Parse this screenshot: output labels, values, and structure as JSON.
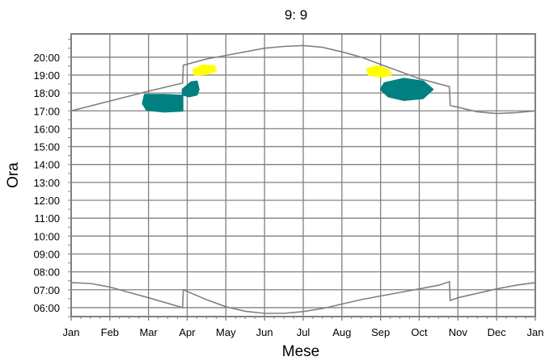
{
  "chart_data": {
    "type": "line",
    "title": "9: 9",
    "xlabel": "Mese",
    "ylabel": "Ora",
    "x_ticks": [
      "Jan",
      "Feb",
      "Mar",
      "Apr",
      "May",
      "Jun",
      "Jul",
      "Aug",
      "Sep",
      "Oct",
      "Nov",
      "Dec",
      "Jan"
    ],
    "y_ticks": [
      "06:00",
      "07:00",
      "08:00",
      "09:00",
      "10:00",
      "11:00",
      "12:00",
      "13:00",
      "14:00",
      "15:00",
      "16:00",
      "17:00",
      "18:00",
      "19:00",
      "20:00"
    ],
    "xlim": [
      0,
      12
    ],
    "ylim": [
      5.5,
      21.3
    ],
    "grid": true,
    "series": [
      {
        "role": "sunset",
        "color": "#808080",
        "points": [
          [
            0,
            17.0
          ],
          [
            1,
            17.55
          ],
          [
            2,
            18.1
          ],
          [
            2.88,
            18.55
          ],
          [
            2.9,
            19.55
          ],
          [
            3.5,
            19.9
          ],
          [
            4,
            20.1
          ],
          [
            5,
            20.5
          ],
          [
            5.5,
            20.6
          ],
          [
            6,
            20.65
          ],
          [
            6.5,
            20.55
          ],
          [
            7,
            20.3
          ],
          [
            7.5,
            20.0
          ],
          [
            8,
            19.6
          ],
          [
            8.5,
            19.2
          ],
          [
            9,
            18.8
          ],
          [
            9.78,
            18.35
          ],
          [
            9.8,
            17.3
          ],
          [
            10,
            17.2
          ],
          [
            10.5,
            16.95
          ],
          [
            11,
            16.85
          ],
          [
            11.5,
            16.9
          ],
          [
            12,
            17.0
          ]
        ]
      },
      {
        "role": "sunrise",
        "color": "#808080",
        "points": [
          [
            0,
            7.4
          ],
          [
            0.5,
            7.35
          ],
          [
            1,
            7.15
          ],
          [
            1.5,
            6.85
          ],
          [
            2,
            6.55
          ],
          [
            2.88,
            6.0
          ],
          [
            2.9,
            7.0
          ],
          [
            3.5,
            6.45
          ],
          [
            4,
            6.05
          ],
          [
            4.5,
            5.8
          ],
          [
            5,
            5.68
          ],
          [
            5.5,
            5.68
          ],
          [
            6,
            5.78
          ],
          [
            6.5,
            5.95
          ],
          [
            7,
            6.2
          ],
          [
            7.5,
            6.45
          ],
          [
            8,
            6.65
          ],
          [
            8.5,
            6.85
          ],
          [
            9,
            7.05
          ],
          [
            9.5,
            7.25
          ],
          [
            9.78,
            7.45
          ],
          [
            9.8,
            6.4
          ],
          [
            10,
            6.55
          ],
          [
            10.5,
            6.8
          ],
          [
            11,
            7.05
          ],
          [
            11.5,
            7.25
          ],
          [
            12,
            7.4
          ]
        ]
      }
    ],
    "regions": [
      {
        "color": "#008080",
        "outline": [
          [
            1.9,
            17.9
          ],
          [
            2.4,
            17.9
          ],
          [
            2.88,
            17.85
          ],
          [
            2.88,
            17.0
          ],
          [
            2.4,
            16.95
          ],
          [
            1.95,
            17.05
          ],
          [
            1.85,
            17.4
          ]
        ]
      },
      {
        "color": "#008080",
        "outline": [
          [
            2.88,
            18.2
          ],
          [
            3.1,
            18.6
          ],
          [
            3.25,
            18.65
          ],
          [
            3.3,
            18.2
          ],
          [
            3.25,
            17.9
          ],
          [
            3.05,
            17.8
          ],
          [
            2.88,
            17.9
          ]
        ]
      },
      {
        "color": "#ffff00",
        "outline": [
          [
            3.15,
            19.3
          ],
          [
            3.4,
            19.55
          ],
          [
            3.7,
            19.5
          ],
          [
            3.75,
            19.25
          ],
          [
            3.5,
            19.05
          ],
          [
            3.2,
            19.0
          ]
        ]
      },
      {
        "color": "#ffff00",
        "outline": [
          [
            7.65,
            19.35
          ],
          [
            7.9,
            19.5
          ],
          [
            8.15,
            19.35
          ],
          [
            8.3,
            19.05
          ],
          [
            8.05,
            18.9
          ],
          [
            7.7,
            19.0
          ]
        ]
      },
      {
        "color": "#008080",
        "outline": [
          [
            8.1,
            18.55
          ],
          [
            8.6,
            18.8
          ],
          [
            9.1,
            18.65
          ],
          [
            9.35,
            18.2
          ],
          [
            9.1,
            17.7
          ],
          [
            8.6,
            17.6
          ],
          [
            8.2,
            17.8
          ],
          [
            8.0,
            18.2
          ]
        ]
      }
    ]
  }
}
